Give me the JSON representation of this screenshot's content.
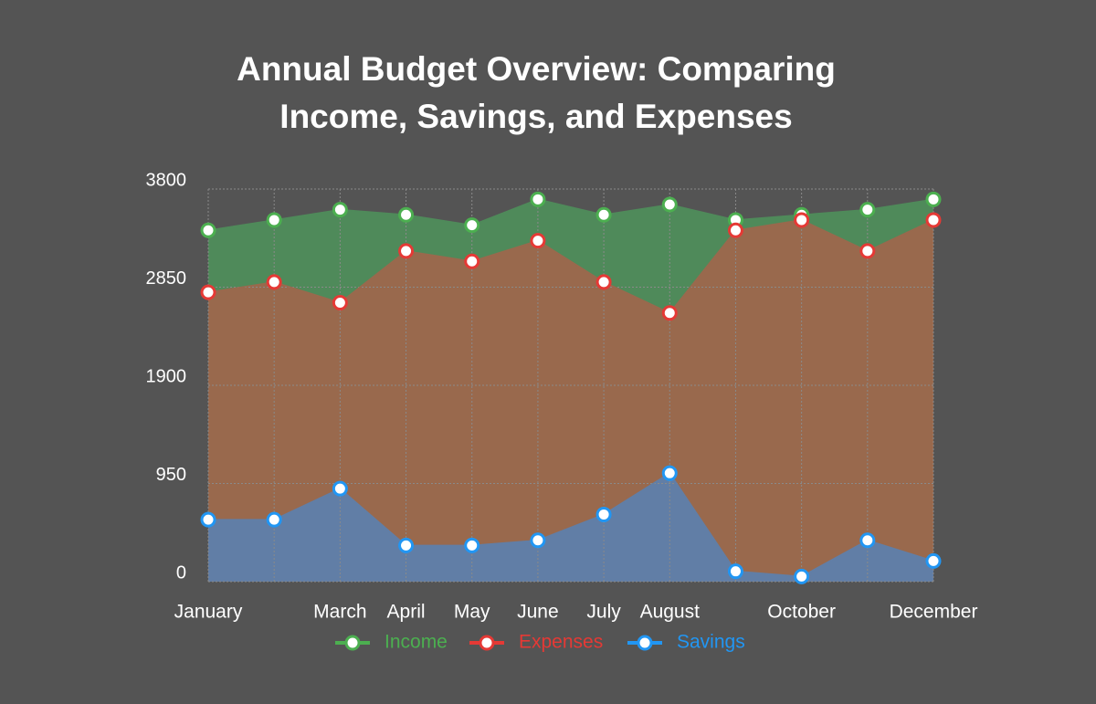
{
  "chart_data": {
    "type": "area",
    "title": [
      "Annual Budget Overview:  Comparing",
      "Income, Savings, and Expenses"
    ],
    "categories": [
      "January",
      null,
      "March",
      "April",
      "May",
      "June",
      "July",
      "August",
      null,
      "October",
      null,
      "December"
    ],
    "series": [
      {
        "name": "Income",
        "color": "#4caf50",
        "fill": "#4f8a5a",
        "values": [
          3400,
          3500,
          3600,
          3550,
          3450,
          3700,
          3550,
          3650,
          3500,
          3550,
          3600,
          3700
        ]
      },
      {
        "name": "Expenses",
        "color": "#e53935",
        "fill": "#99694d",
        "values": [
          2800,
          2900,
          2700,
          3200,
          3100,
          3300,
          2900,
          2600,
          3400,
          3500,
          3200,
          3500
        ]
      },
      {
        "name": "Savings",
        "color": "#2196f3",
        "fill": "#617ea6",
        "values": [
          600,
          600,
          900,
          350,
          350,
          400,
          650,
          1050,
          100,
          50,
          400,
          200
        ]
      }
    ],
    "ylim": [
      0,
      3800
    ],
    "yticks": [
      0,
      950,
      1900,
      2850,
      3800
    ],
    "grid": true
  }
}
